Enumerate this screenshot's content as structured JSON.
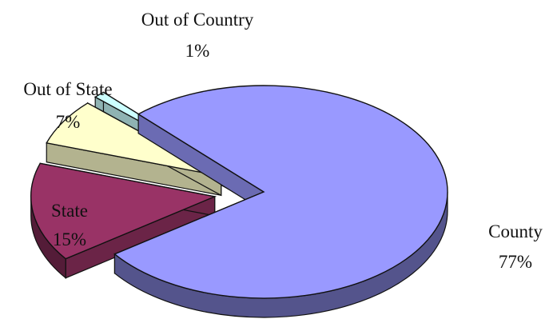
{
  "chart_data": {
    "type": "pie",
    "title": "",
    "style": "3d-exploded",
    "slices": [
      {
        "label": "County",
        "value": 77,
        "value_label": "77%",
        "color": "#9999ff"
      },
      {
        "label": "State",
        "value": 15,
        "value_label": "15%",
        "color": "#993366"
      },
      {
        "label": "Out of State",
        "value": 7,
        "value_label": "7%",
        "color": "#ffffcc"
      },
      {
        "label": "Out of Country",
        "value": 1,
        "value_label": "1%",
        "color": "#ccffff"
      }
    ],
    "legend": "none"
  }
}
